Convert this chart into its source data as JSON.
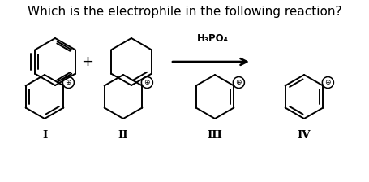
{
  "title": "Which is the electrophile in the following reaction?",
  "title_fontsize": 11,
  "reagent_label": "H₃PO₄",
  "background_color": "#ffffff",
  "text_color": "#000000",
  "roman_labels": [
    "I",
    "II",
    "III",
    "IV"
  ],
  "structure_color": "#000000",
  "lw": 1.4,
  "fig_w": 4.56,
  "fig_h": 2.24,
  "dpi": 100
}
